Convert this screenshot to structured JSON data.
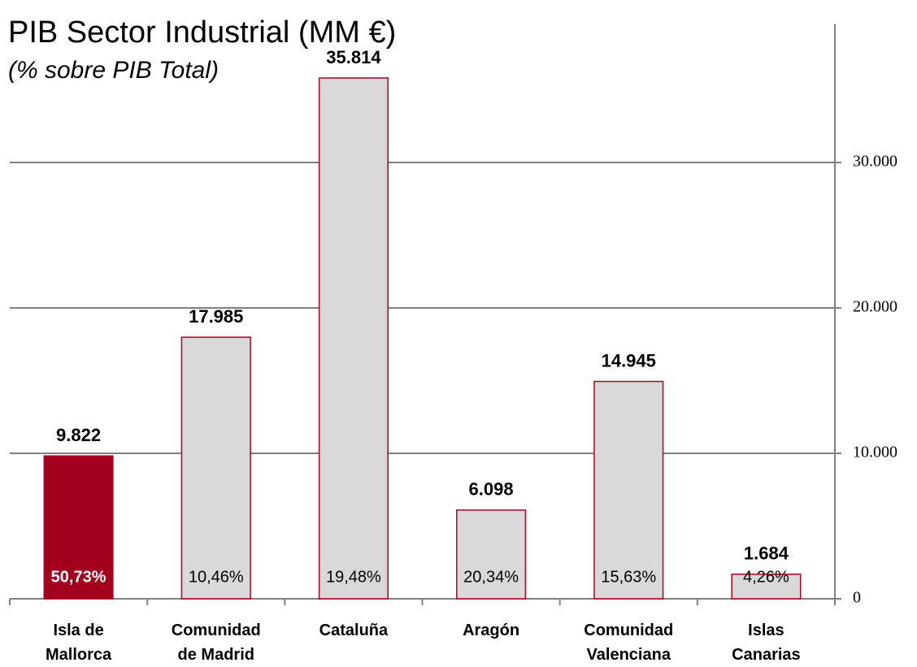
{
  "chart_data": {
    "type": "bar",
    "title": "PIB Sector Industrial (MM €)",
    "subtitle": "(% sobre PIB Total)",
    "categories": [
      "Isla de\nMallorca",
      "Comunidad\nde Madrid",
      "Cataluña",
      "Aragón",
      "Comunidad\nValenciana",
      "Islas\nCanarias"
    ],
    "values": [
      9822,
      17985,
      35814,
      6098,
      14945,
      1684
    ],
    "value_labels": [
      "9.822",
      "17.985",
      "35.814",
      "6.098",
      "14.945",
      "1.684"
    ],
    "share_labels": [
      "50,73%",
      "10,46%",
      "19,48%",
      "20,34%",
      "15,63%",
      "4,26%"
    ],
    "colors": [
      "#a3001e",
      "#d9d9d9",
      "#d9d9d9",
      "#d9d9d9",
      "#d9d9d9",
      "#d9d9d9"
    ],
    "edge_color": "#b0001e",
    "ylim": [
      0,
      39500
    ],
    "yticks": [
      0,
      {
        "value": 10000,
        "label": "10.000"
      },
      {
        "value": 20000,
        "label": "20.000"
      },
      {
        "value": 30000,
        "label": "30.000"
      }
    ],
    "y_axis_side": "right",
    "grid": true
  }
}
